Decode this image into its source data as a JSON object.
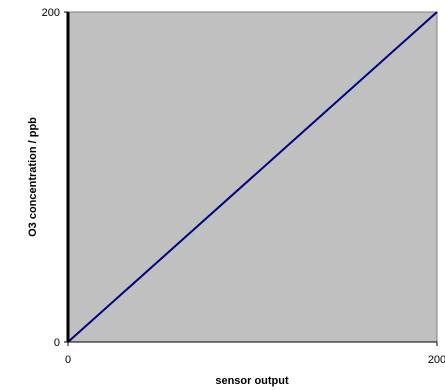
{
  "chart_data": {
    "type": "line",
    "title": "",
    "xlabel": "sensor output",
    "ylabel": "O3 concentration / ppb",
    "xlim": [
      0,
      200
    ],
    "ylim": [
      0,
      200
    ],
    "x_ticks": [
      0,
      200
    ],
    "y_ticks": [
      0,
      200
    ],
    "x_tick_labels": [
      "0",
      "200"
    ],
    "y_tick_labels": [
      "0",
      "200"
    ],
    "grid": false,
    "legend": "none",
    "plot_background": "#c0c0c0",
    "series": [
      {
        "color": "#000080",
        "x": [
          0,
          200
        ],
        "y": [
          0,
          200
        ]
      }
    ]
  }
}
